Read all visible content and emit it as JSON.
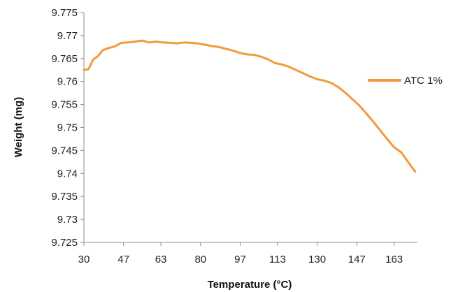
{
  "chart_data": {
    "type": "line",
    "title": "",
    "xlabel": "Temperature (°C)",
    "ylabel": "Weight (mg)",
    "xlim": [
      30,
      173
    ],
    "ylim": [
      9.725,
      9.775
    ],
    "x_ticks": [
      30,
      47,
      63,
      80,
      97,
      113,
      130,
      147,
      163
    ],
    "y_ticks": [
      9.725,
      9.73,
      9.735,
      9.74,
      9.745,
      9.75,
      9.755,
      9.76,
      9.765,
      9.77,
      9.775
    ],
    "x_tick_labels": [
      "30",
      "47",
      "63",
      "80",
      "97",
      "113",
      "130",
      "147",
      "163"
    ],
    "y_tick_labels": [
      "9.725",
      "9.73",
      "9.735",
      "9.74",
      "9.745",
      "9.75",
      "9.755",
      "9.76",
      "9.765",
      "9.77",
      "9.775"
    ],
    "grid": false,
    "legend_position": "right",
    "series": [
      {
        "name": "ATC 1%",
        "color": "#F39A3B",
        "points": [
          [
            30,
            9.7625
          ],
          [
            32,
            9.7627
          ],
          [
            34,
            9.7648
          ],
          [
            36,
            9.7655
          ],
          [
            38,
            9.7668
          ],
          [
            40,
            9.7672
          ],
          [
            43,
            9.7676
          ],
          [
            46,
            9.7684
          ],
          [
            49,
            9.7685
          ],
          [
            52,
            9.7687
          ],
          [
            55,
            9.7689
          ],
          [
            58,
            9.7685
          ],
          [
            61,
            9.7687
          ],
          [
            64,
            9.7685
          ],
          [
            67,
            9.7684
          ],
          [
            70,
            9.7683
          ],
          [
            73,
            9.7685
          ],
          [
            76,
            9.7684
          ],
          [
            79,
            9.7683
          ],
          [
            82,
            9.768
          ],
          [
            85,
            9.7677
          ],
          [
            88,
            9.7675
          ],
          [
            91,
            9.7671
          ],
          [
            94,
            9.7667
          ],
          [
            97,
            9.7662
          ],
          [
            100,
            9.7659
          ],
          [
            103,
            9.7658
          ],
          [
            106,
            9.7654
          ],
          [
            109,
            9.7648
          ],
          [
            112,
            9.764
          ],
          [
            115,
            9.7637
          ],
          [
            118,
            9.7632
          ],
          [
            121,
            9.7625
          ],
          [
            124,
            9.7618
          ],
          [
            127,
            9.7611
          ],
          [
            130,
            9.7605
          ],
          [
            133,
            9.7602
          ],
          [
            136,
            9.7597
          ],
          [
            139,
            9.7588
          ],
          [
            142,
            9.7576
          ],
          [
            145,
            9.7562
          ],
          [
            148,
            9.7548
          ],
          [
            151,
            9.7531
          ],
          [
            154,
            9.7513
          ],
          [
            157,
            9.7494
          ],
          [
            160,
            9.7475
          ],
          [
            163,
            9.7457
          ],
          [
            166,
            9.7446
          ],
          [
            169,
            9.7425
          ],
          [
            172,
            9.7404
          ]
        ]
      }
    ]
  }
}
